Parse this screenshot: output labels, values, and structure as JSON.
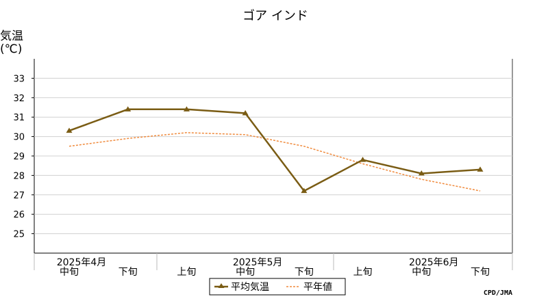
{
  "chart_data": {
    "type": "line",
    "title": "ゴア インド",
    "ylabel": "気温",
    "yunit": "(℃)",
    "ylim": [
      24,
      34
    ],
    "yticks": [
      25,
      26,
      27,
      28,
      29,
      30,
      31,
      32,
      33
    ],
    "categories": [
      "中旬",
      "下旬",
      "上旬",
      "中旬",
      "下旬",
      "上旬",
      "中旬",
      "下旬"
    ],
    "months": [
      {
        "label": "2025年4月",
        "at": 0
      },
      {
        "label": "2025年5月",
        "at": 3
      },
      {
        "label": "2025年6月",
        "at": 6
      }
    ],
    "grid": true,
    "legend_position": "bottom",
    "series": [
      {
        "name": "平均気温",
        "style": "solid-triangle",
        "color": "#7a5c14",
        "values": [
          30.3,
          31.4,
          31.4,
          31.2,
          27.2,
          28.8,
          28.1,
          28.3
        ]
      },
      {
        "name": "平年値",
        "style": "dashed",
        "color": "#f08a3c",
        "values": [
          29.5,
          29.9,
          30.2,
          30.1,
          29.5,
          28.6,
          27.8,
          27.2
        ]
      }
    ],
    "credit": "CPD/JMA"
  }
}
